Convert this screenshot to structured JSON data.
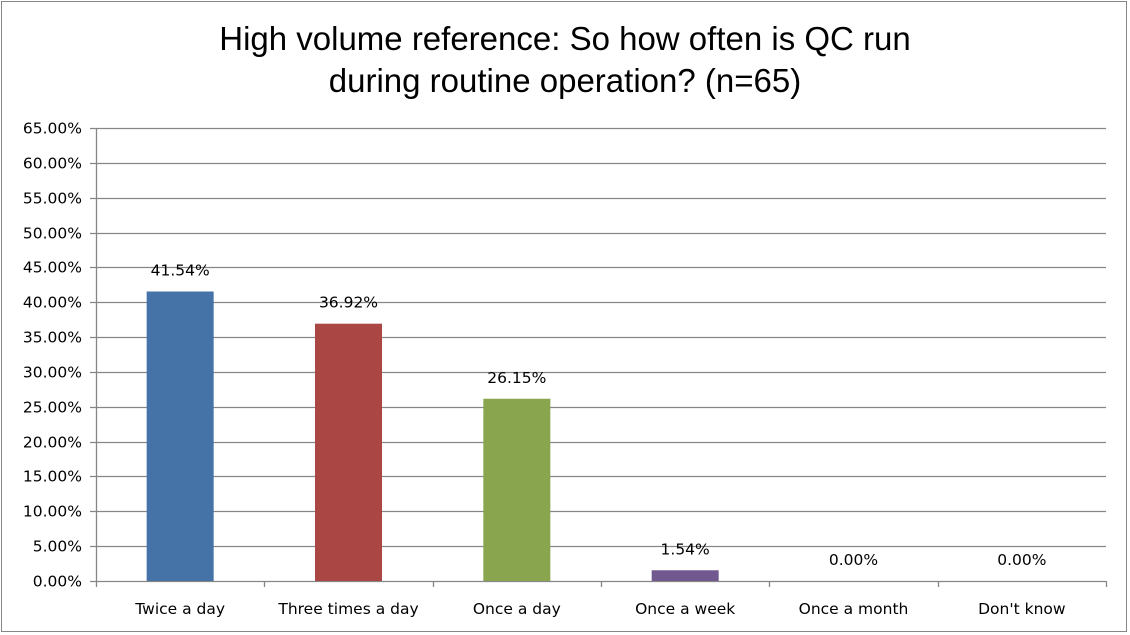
{
  "chart_data": {
    "type": "bar",
    "title_line1": "High volume reference: So how often is QC run",
    "title_line2": "during routine operation? (n=65)",
    "categories": [
      "Twice a day",
      "Three times a day",
      "Once a day",
      "Once a week",
      "Once a month",
      "Don't know"
    ],
    "values": [
      41.54,
      36.92,
      26.15,
      1.54,
      0.0,
      0.0
    ],
    "data_labels": [
      "41.54%",
      "36.92%",
      "26.15%",
      "1.54%",
      "0.00%",
      "0.00%"
    ],
    "colors": [
      "#4572A7",
      "#AA4643",
      "#89A54E",
      "#71588F",
      "#4198AF",
      "#DB843D"
    ],
    "xlabel": "",
    "ylabel": "",
    "ylim": [
      0,
      65
    ],
    "ytick_step": 5,
    "ytick_labels": [
      "0.00%",
      "5.00%",
      "10.00%",
      "15.00%",
      "20.00%",
      "25.00%",
      "30.00%",
      "35.00%",
      "40.00%",
      "45.00%",
      "50.00%",
      "55.00%",
      "60.00%",
      "65.00%"
    ],
    "grid": true,
    "legend": "none"
  }
}
